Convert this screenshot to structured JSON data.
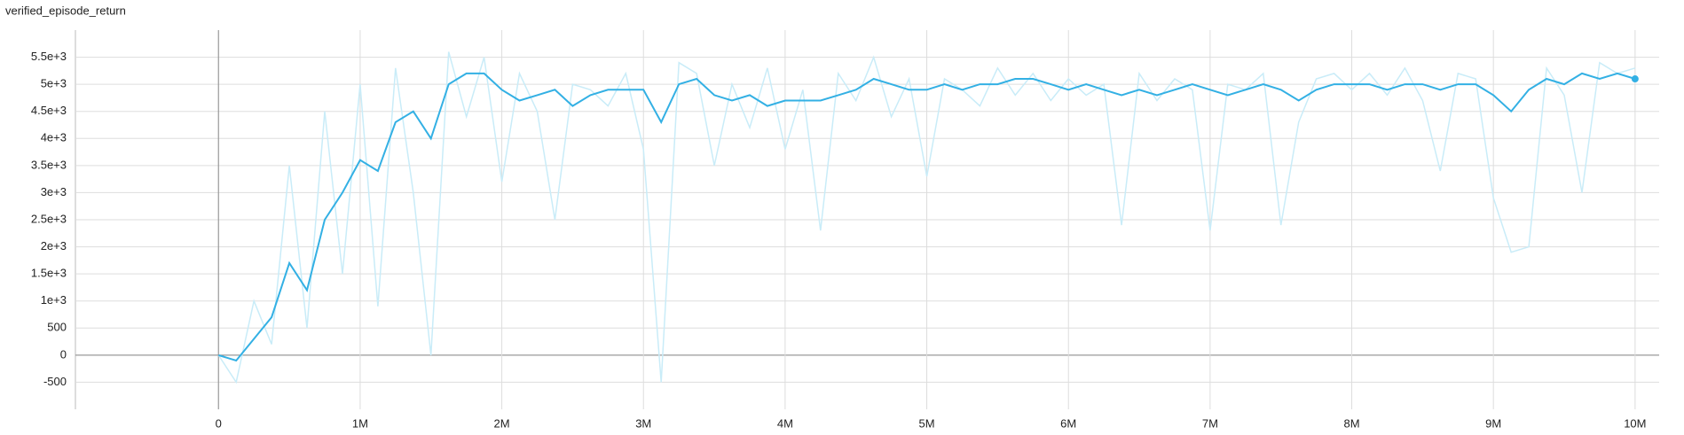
{
  "chart_data": {
    "type": "line",
    "title": "verified_episode_return",
    "x": [
      0,
      125000,
      250000,
      375000,
      500000,
      625000,
      750000,
      875000,
      1000000,
      1125000,
      1250000,
      1375000,
      1500000,
      1625000,
      1750000,
      1875000,
      2000000,
      2125000,
      2250000,
      2375000,
      2500000,
      2625000,
      2750000,
      2875000,
      3000000,
      3125000,
      3250000,
      3375000,
      3500000,
      3625000,
      3750000,
      3875000,
      4000000,
      4125000,
      4250000,
      4375000,
      4500000,
      4625000,
      4750000,
      4875000,
      5000000,
      5125000,
      5250000,
      5375000,
      5500000,
      5625000,
      5750000,
      5875000,
      6000000,
      6125000,
      6250000,
      6375000,
      6500000,
      6625000,
      6750000,
      6875000,
      7000000,
      7125000,
      7250000,
      7375000,
      7500000,
      7625000,
      7750000,
      7875000,
      8000000,
      8125000,
      8250000,
      8375000,
      8500000,
      8625000,
      8750000,
      8875000,
      9000000,
      9125000,
      9250000,
      9375000,
      9500000,
      9625000,
      9750000,
      9875000,
      10000000
    ],
    "series": [
      {
        "color": "#c9ecf8",
        "values": [
          0,
          -500,
          1000,
          200,
          3500,
          500,
          4500,
          1500,
          5000,
          900,
          5300,
          3000,
          0,
          5600,
          4400,
          5500,
          3200,
          5200,
          4500,
          2500,
          5000,
          4900,
          4600,
          5200,
          3800,
          -500,
          5400,
          5200,
          3500,
          5000,
          4200,
          5300,
          3800,
          4900,
          2300,
          5200,
          4700,
          5500,
          4400,
          5100,
          3300,
          5100,
          4900,
          4600,
          5300,
          4800,
          5200,
          4700,
          5100,
          4800,
          5000,
          2400,
          5200,
          4700,
          5100,
          4900,
          2300,
          5000,
          4900,
          5200,
          2400,
          4300,
          5100,
          5200,
          4900,
          5200,
          4800,
          5300,
          4700,
          3400,
          5200,
          5100,
          2900,
          1900,
          2000,
          5300,
          4800,
          3000,
          5400,
          5200,
          5300
        ]
      },
      {
        "color": "#33b0e4",
        "values": [
          0,
          -100,
          300,
          700,
          1700,
          1200,
          2500,
          3000,
          3600,
          3400,
          4300,
          4500,
          4000,
          5000,
          5200,
          5200,
          4900,
          4700,
          4800,
          4900,
          4600,
          4800,
          4900,
          4900,
          4900,
          4300,
          5000,
          5100,
          4800,
          4700,
          4800,
          4600,
          4700,
          4700,
          4700,
          4800,
          4900,
          5100,
          5000,
          4900,
          4900,
          5000,
          4900,
          5000,
          5000,
          5100,
          5100,
          5000,
          4900,
          5000,
          4900,
          4800,
          4900,
          4800,
          4900,
          5000,
          4900,
          4800,
          4900,
          5000,
          4900,
          4700,
          4900,
          5000,
          5000,
          5000,
          4900,
          5000,
          5000,
          4900,
          5000,
          5000,
          4800,
          4500,
          4900,
          5100,
          5000,
          5200,
          5100,
          5200,
          5100
        ]
      }
    ],
    "xlim": [
      -1010000,
      10170000
    ],
    "ylim": [
      -1000,
      6000
    ],
    "xticks": [
      0,
      {
        "value": 1000000,
        "label": "1M"
      },
      {
        "value": 2000000,
        "label": "2M"
      },
      {
        "value": 3000000,
        "label": "3M"
      },
      {
        "value": 4000000,
        "label": "4M"
      },
      {
        "value": 5000000,
        "label": "5M"
      },
      {
        "value": 6000000,
        "label": "6M"
      },
      {
        "value": 7000000,
        "label": "7M"
      },
      {
        "value": 8000000,
        "label": "8M"
      },
      {
        "value": 9000000,
        "label": "9M"
      },
      {
        "value": 10000000,
        "label": "10M"
      }
    ],
    "yticks": [
      -500,
      0,
      500,
      {
        "value": 1000,
        "label": "1e+3"
      },
      {
        "value": 1500,
        "label": "1.5e+3"
      },
      {
        "value": 2000,
        "label": "2e+3"
      },
      {
        "value": 2500,
        "label": "2.5e+3"
      },
      {
        "value": 3000,
        "label": "3e+3"
      },
      {
        "value": 3500,
        "label": "3.5e+3"
      },
      {
        "value": 4000,
        "label": "4e+3"
      },
      {
        "value": 4500,
        "label": "4.5e+3"
      },
      {
        "value": 5000,
        "label": "5e+3"
      },
      {
        "value": 5500,
        "label": "5.5e+3"
      }
    ],
    "grid": true
  }
}
